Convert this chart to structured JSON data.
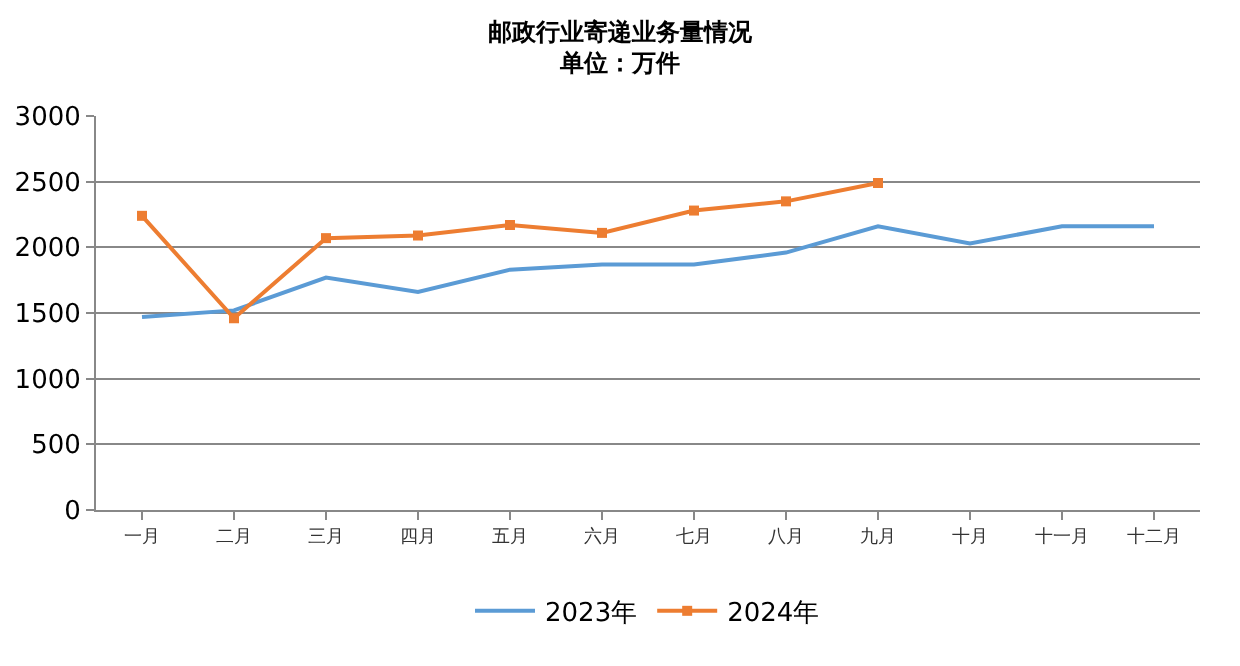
{
  "chart_data": {
    "type": "line",
    "title": "邮政行业寄递业务量情况",
    "subtitle": "单位：万件",
    "categories": [
      "一月",
      "二月",
      "三月",
      "四月",
      "五月",
      "六月",
      "七月",
      "八月",
      "九月",
      "十月",
      "十一月",
      "十二月"
    ],
    "series": [
      {
        "name": "2023年",
        "color": "#5b9bd5",
        "marker": "none",
        "values": [
          1470,
          1520,
          1770,
          1660,
          1830,
          1870,
          1870,
          1960,
          2160,
          2030,
          2160,
          2160
        ]
      },
      {
        "name": "2024年",
        "color": "#ed7d31",
        "marker": "square",
        "values": [
          2240,
          1460,
          2070,
          2090,
          2170,
          2110,
          2280,
          2350,
          2490,
          null,
          null,
          null
        ]
      }
    ],
    "ylim": [
      0,
      3000
    ],
    "yticks": [
      0,
      500,
      1000,
      1500,
      2000,
      2500,
      3000
    ],
    "grid": "y",
    "legend": "bottom",
    "line_style": "solid"
  }
}
